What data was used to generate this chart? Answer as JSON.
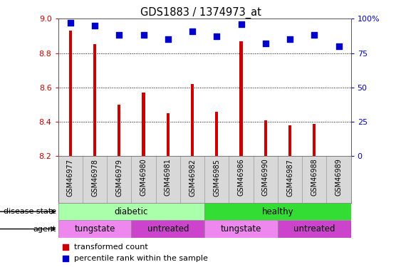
{
  "title": "GDS1883 / 1374973_at",
  "samples": [
    "GSM46977",
    "GSM46978",
    "GSM46979",
    "GSM46980",
    "GSM46981",
    "GSM46982",
    "GSM46985",
    "GSM46986",
    "GSM46990",
    "GSM46987",
    "GSM46988",
    "GSM46989"
  ],
  "bar_values": [
    8.93,
    8.85,
    8.5,
    8.57,
    8.45,
    8.62,
    8.46,
    8.87,
    8.41,
    8.38,
    8.39,
    8.2
  ],
  "percentile_values": [
    97,
    95,
    88,
    88,
    85,
    91,
    87,
    96,
    82,
    85,
    88,
    80
  ],
  "ylim_left": [
    8.2,
    9.0
  ],
  "ylim_right": [
    0,
    100
  ],
  "yticks_left": [
    8.2,
    8.4,
    8.6,
    8.8,
    9.0
  ],
  "yticks_right": [
    0,
    25,
    50,
    75,
    100
  ],
  "bar_color": "#cc0000",
  "dot_color": "#0000cc",
  "disease_groups": [
    {
      "label": "diabetic",
      "start": 0,
      "end": 6,
      "color": "#aaffaa"
    },
    {
      "label": "healthy",
      "start": 6,
      "end": 12,
      "color": "#33dd33"
    }
  ],
  "agent_groups": [
    {
      "label": "tungstate",
      "start": 0,
      "end": 3,
      "color": "#ee88ee"
    },
    {
      "label": "untreated",
      "start": 3,
      "end": 6,
      "color": "#cc44cc"
    },
    {
      "label": "tungstate",
      "start": 6,
      "end": 9,
      "color": "#ee88ee"
    },
    {
      "label": "untreated",
      "start": 9,
      "end": 12,
      "color": "#cc44cc"
    }
  ],
  "legend_items": [
    {
      "label": "transformed count",
      "color": "#cc0000"
    },
    {
      "label": "percentile rank within the sample",
      "color": "#0000cc"
    }
  ],
  "bar_width": 0.12,
  "dot_size": 35,
  "label_area_color": "#d8d8d8",
  "disease_label": "disease state",
  "agent_label": "agent",
  "tick_label_color_left": "#cc0000",
  "tick_label_color_right": "#0000cc"
}
